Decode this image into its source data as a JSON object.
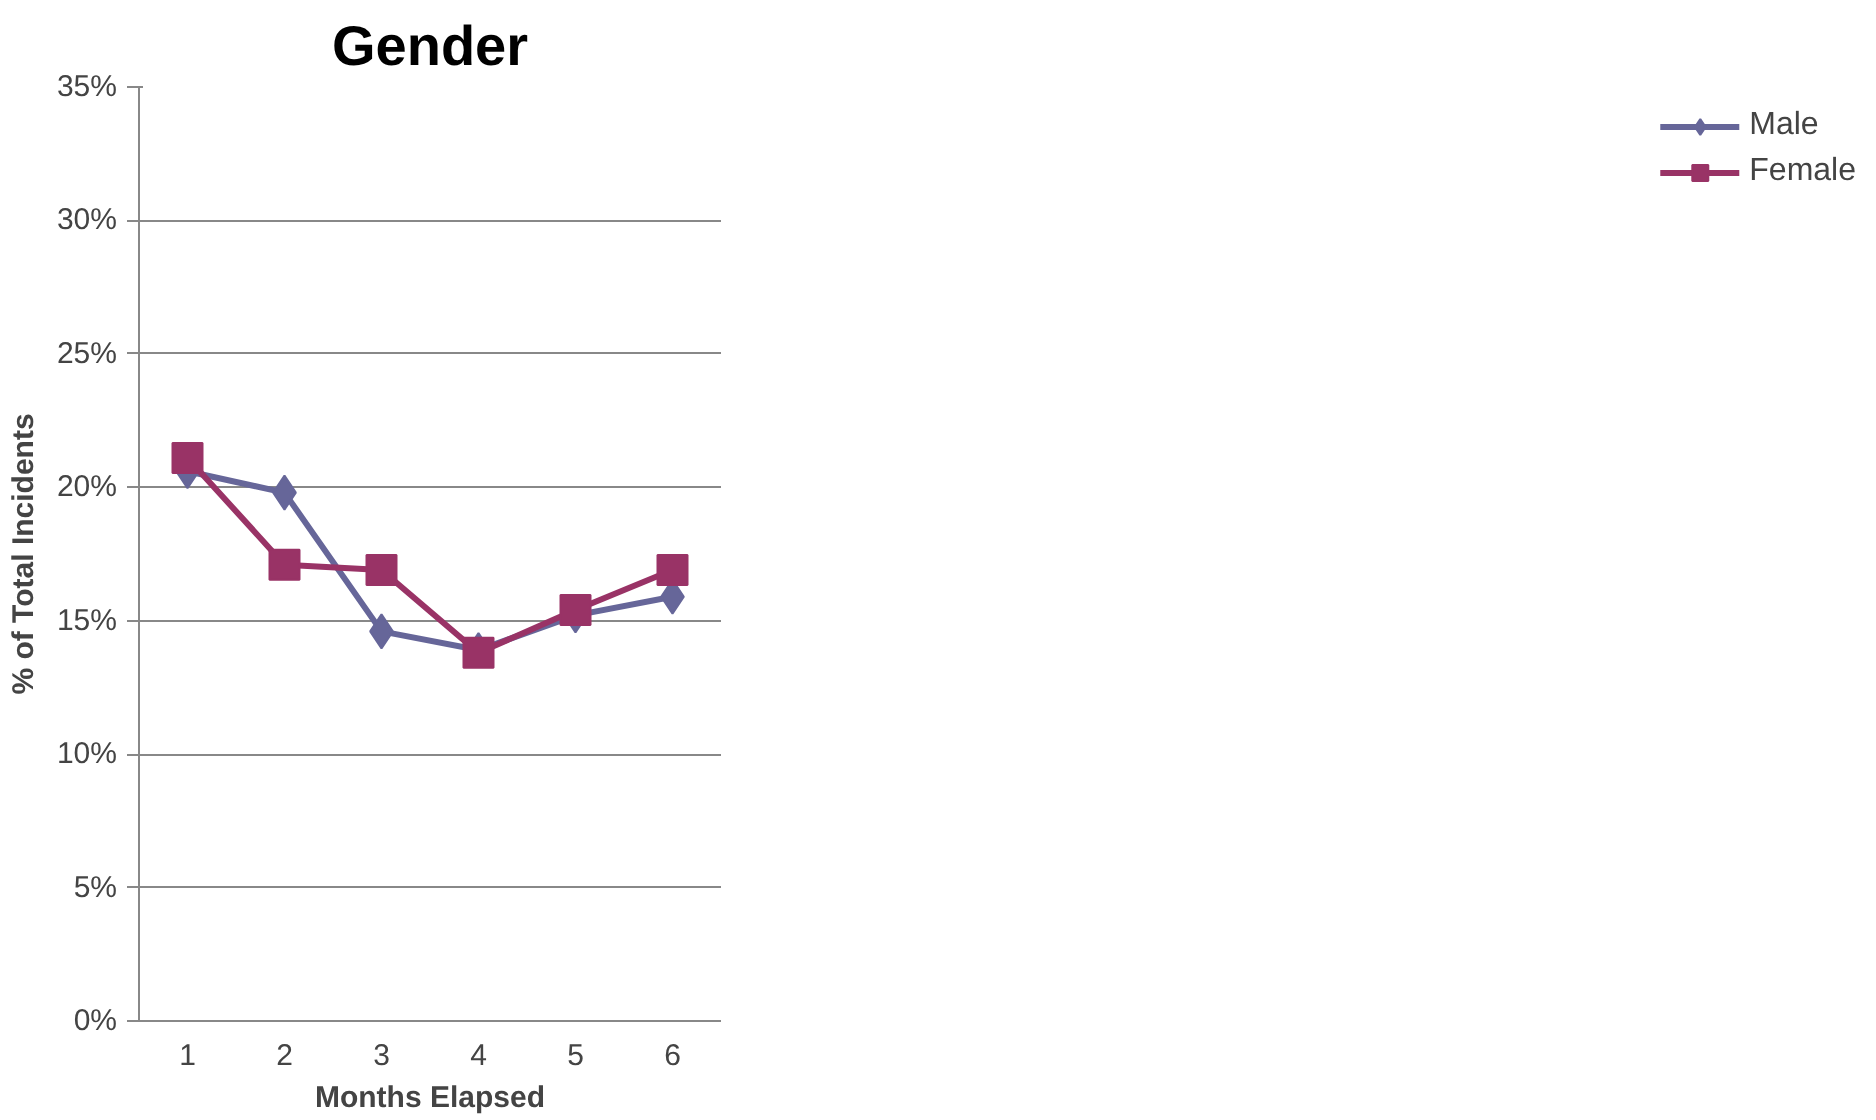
{
  "chart_data": {
    "type": "line",
    "title": "Gender",
    "xlabel": "Months Elapsed",
    "ylabel": "% of Total Incidents",
    "categories": [
      "1",
      "2",
      "3",
      "4",
      "5",
      "6"
    ],
    "series": [
      {
        "name": "Male",
        "color": "#666699",
        "marker": "diamond",
        "values": [
          20.6,
          19.8,
          14.6,
          13.9,
          15.2,
          15.9
        ]
      },
      {
        "name": "Female",
        "color": "#993366",
        "marker": "square",
        "values": [
          21.1,
          17.1,
          16.9,
          13.8,
          15.4,
          16.9
        ]
      }
    ],
    "ylim": [
      0,
      35
    ],
    "yticks": [
      {
        "value": 0,
        "label": "0%"
      },
      {
        "value": 5,
        "label": "5%"
      },
      {
        "value": 10,
        "label": "10%"
      },
      {
        "value": 15,
        "label": "15%"
      },
      {
        "value": 20,
        "label": "20%"
      },
      {
        "value": 25,
        "label": "25%"
      },
      {
        "value": 30,
        "label": "30%"
      },
      {
        "value": 35,
        "label": "35%"
      }
    ],
    "grid": "y",
    "legend": "right"
  }
}
